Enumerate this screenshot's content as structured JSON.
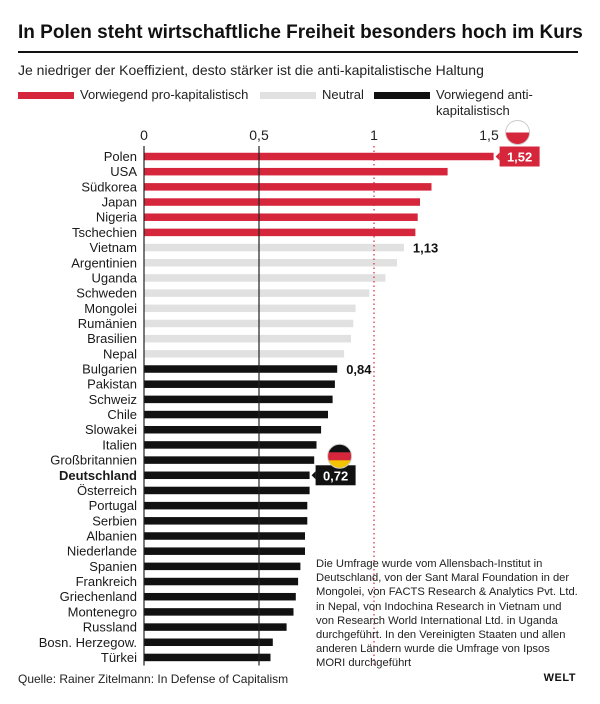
{
  "header": {
    "title": "In Polen steht wirtschaftliche Freiheit besonders hoch im Kurs",
    "subtitle": "Je niedriger der Koeffizient, desto stärker ist die anti-kapitalistische Haltung"
  },
  "legend": [
    {
      "label": "Vorwiegend pro-kapitalistisch",
      "color": "#d6263c"
    },
    {
      "label": "Neutral",
      "color": "#e1e1e1"
    },
    {
      "label": "Vorwiegend anti-kapitalistisch",
      "color": "#111111"
    }
  ],
  "chart_data": {
    "type": "bar",
    "orientation": "horizontal",
    "title": "In Polen steht wirtschaftliche Freiheit besonders hoch im Kurs",
    "subtitle": "Je niedriger der Koeffizient, desto stärker ist die anti-kapitalistische Haltung",
    "xlim": [
      0,
      1.6
    ],
    "xticks": [
      0,
      0.5,
      1,
      1.5
    ],
    "xtick_labels": [
      "0",
      "0,5",
      "1",
      "1,5"
    ],
    "reference_lines": [
      {
        "value": 0.5,
        "style": "solid"
      },
      {
        "value": 1,
        "style": "dotted-red"
      }
    ],
    "categories": [
      "Polen",
      "USA",
      "Südkorea",
      "Japan",
      "Nigeria",
      "Tschechien",
      "Vietnam",
      "Argentinien",
      "Uganda",
      "Schweden",
      "Mongolei",
      "Rumänien",
      "Brasilien",
      "Nepal",
      "Bulgarien",
      "Pakistan",
      "Schweiz",
      "Chile",
      "Slowakei",
      "Italien",
      "Großbritannien",
      "Deutschland",
      "Österreich",
      "Portugal",
      "Serbien",
      "Albanien",
      "Niederlande",
      "Spanien",
      "Frankreich",
      "Griechenland",
      "Montenegro",
      "Russland",
      "Bosn. Herzegow.",
      "Türkei"
    ],
    "values": [
      1.52,
      1.32,
      1.25,
      1.2,
      1.19,
      1.18,
      1.13,
      1.1,
      1.05,
      0.98,
      0.92,
      0.91,
      0.9,
      0.87,
      0.84,
      0.83,
      0.82,
      0.8,
      0.77,
      0.75,
      0.74,
      0.72,
      0.72,
      0.71,
      0.71,
      0.7,
      0.7,
      0.68,
      0.67,
      0.66,
      0.65,
      0.62,
      0.56,
      0.55
    ],
    "groups": [
      "pro",
      "pro",
      "pro",
      "pro",
      "pro",
      "pro",
      "neutral",
      "neutral",
      "neutral",
      "neutral",
      "neutral",
      "neutral",
      "neutral",
      "neutral",
      "anti",
      "anti",
      "anti",
      "anti",
      "anti",
      "anti",
      "anti",
      "anti",
      "anti",
      "anti",
      "anti",
      "anti",
      "anti",
      "anti",
      "anti",
      "anti",
      "anti",
      "anti",
      "anti",
      "anti"
    ],
    "highlight": "Deutschland",
    "value_labels": [
      {
        "category": "Polen",
        "text": "1,52",
        "style": "red-box"
      },
      {
        "category": "Vietnam",
        "text": "1,13",
        "style": "plain"
      },
      {
        "category": "Bulgarien",
        "text": "0,84",
        "style": "plain"
      },
      {
        "category": "Deutschland",
        "text": "0,72",
        "style": "black-box"
      }
    ],
    "flags": [
      {
        "category": "Polen",
        "icon": "poland-flag-icon",
        "colors": [
          "#ffffff",
          "#d6263c"
        ]
      },
      {
        "category": "Deutschland",
        "icon": "germany-flag-icon",
        "colors": [
          "#111111",
          "#d6263c",
          "#f5c400"
        ]
      }
    ]
  },
  "note": "Die Umfrage wurde vom Allensbach-Institut in Deutschland, von der Sant Maral Foundation in der Mongolei, von FACTS Research & Analytics Pvt. Ltd. in Nepal, von Indochina Research in Vietnam und von Research World International Ltd. in Uganda durchgeführt. In den Vereinigten Staaten und allen anderen Ländern wurde die Umfrage von Ipsos MORI durchgeführt",
  "source": "Quelle: Rainer Zitelmann: In Defense of Capitalism",
  "brand": "WELT"
}
